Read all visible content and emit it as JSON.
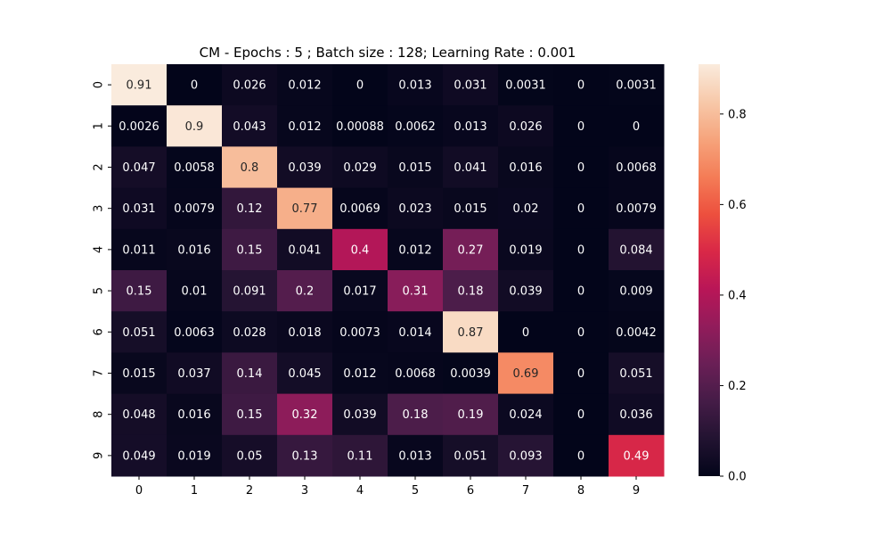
{
  "chart_data": {
    "type": "heatmap",
    "title": "CM - Epochs : 5 ; Batch size : 128; Learning Rate : 0.001",
    "xlabel": "",
    "ylabel": "",
    "x_categories": [
      "0",
      "1",
      "2",
      "3",
      "4",
      "5",
      "6",
      "7",
      "8",
      "9"
    ],
    "y_categories": [
      "0",
      "1",
      "2",
      "3",
      "4",
      "5",
      "6",
      "7",
      "8",
      "9"
    ],
    "values": [
      [
        0.91,
        0,
        0.026,
        0.012,
        0,
        0.013,
        0.031,
        0.0031,
        0,
        0.0031
      ],
      [
        0.0026,
        0.9,
        0.043,
        0.012,
        0.00088,
        0.0062,
        0.013,
        0.026,
        0,
        0
      ],
      [
        0.047,
        0.0058,
        0.8,
        0.039,
        0.029,
        0.015,
        0.041,
        0.016,
        0,
        0.0068
      ],
      [
        0.031,
        0.0079,
        0.12,
        0.77,
        0.0069,
        0.023,
        0.015,
        0.02,
        0,
        0.0079
      ],
      [
        0.011,
        0.016,
        0.15,
        0.041,
        0.4,
        0.012,
        0.27,
        0.019,
        0,
        0.084
      ],
      [
        0.15,
        0.01,
        0.091,
        0.2,
        0.017,
        0.31,
        0.18,
        0.039,
        0,
        0.009
      ],
      [
        0.051,
        0.0063,
        0.028,
        0.018,
        0.0073,
        0.014,
        0.87,
        0,
        0,
        0.0042
      ],
      [
        0.015,
        0.037,
        0.14,
        0.045,
        0.012,
        0.0068,
        0.0039,
        0.69,
        0,
        0.051
      ],
      [
        0.048,
        0.016,
        0.15,
        0.32,
        0.039,
        0.18,
        0.19,
        0.024,
        0,
        0.036
      ],
      [
        0.049,
        0.019,
        0.05,
        0.13,
        0.11,
        0.013,
        0.051,
        0.093,
        0,
        0.49
      ]
    ],
    "colorbar": {
      "range": [
        0,
        0.91
      ],
      "ticks": [
        0.0,
        0.2,
        0.4,
        0.6,
        0.8
      ],
      "tick_labels": [
        "0.0",
        "0.2",
        "0.4",
        "0.6",
        "0.8"
      ],
      "colormap": "rocket",
      "stops": [
        "#03051a",
        "#221331",
        "#451c47",
        "#6a1f56",
        "#921c5b",
        "#b91657",
        "#d92847",
        "#ed503e",
        "#f47d57",
        "#f6a47c",
        "#f7c9aa",
        "#faebdd"
      ]
    },
    "light_text_color": "#ffffff",
    "dark_text_color": "#262626"
  }
}
